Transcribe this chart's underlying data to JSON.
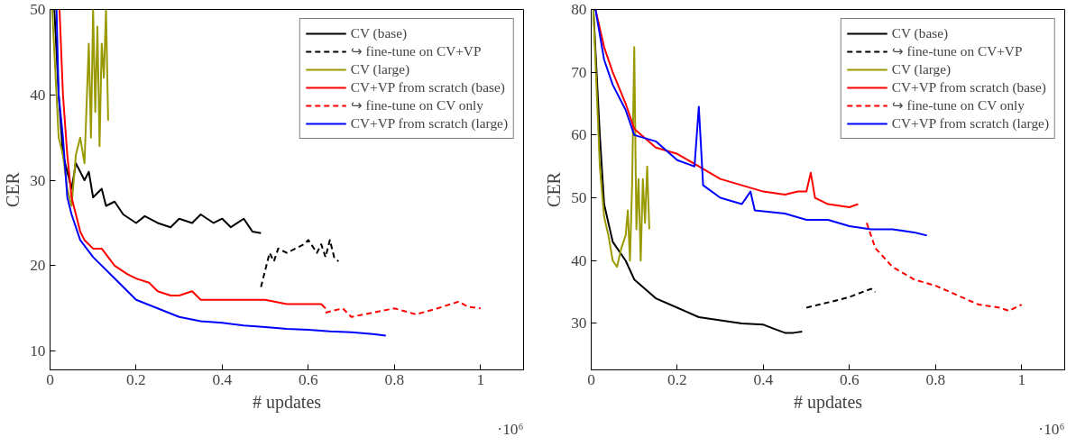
{
  "chart_data": [
    {
      "type": "line",
      "xlabel": "# updates",
      "ylabel": "CER",
      "annotations": [
        "·10⁶"
      ],
      "xlim": [
        0,
        1.1
      ],
      "ylim": [
        7.8,
        50
      ],
      "xticks": [
        0,
        0.2,
        0.4,
        0.6,
        0.8,
        1
      ],
      "yticks": [
        10,
        20,
        30,
        40,
        50
      ],
      "grid": false,
      "legend": "top right",
      "series": [
        {
          "name": "CV (base)",
          "color": "#000000",
          "line_style": "solid",
          "x": [
            0.01,
            0.02,
            0.03,
            0.04,
            0.05,
            0.06,
            0.08,
            0.09,
            0.1,
            0.12,
            0.13,
            0.15,
            0.17,
            0.2,
            0.22,
            0.25,
            0.28,
            0.3,
            0.33,
            0.35,
            0.38,
            0.4,
            0.42,
            0.45,
            0.47,
            0.49
          ],
          "values": [
            50,
            40,
            33,
            31,
            29,
            32,
            30,
            31,
            28,
            29,
            27,
            27.5,
            26,
            25,
            25.8,
            25,
            24.5,
            25.5,
            25,
            26,
            25,
            25.5,
            24.5,
            25.5,
            24,
            23.8
          ]
        },
        {
          "name": "↪ fine-tune on CV+VP",
          "color": "#000000",
          "line_style": "dashed",
          "x": [
            0.49,
            0.5,
            0.51,
            0.52,
            0.53,
            0.55,
            0.57,
            0.59,
            0.6,
            0.62,
            0.63,
            0.64,
            0.65,
            0.66,
            0.67
          ],
          "values": [
            17.5,
            19.5,
            21.5,
            20.5,
            22,
            21.5,
            22,
            22.5,
            23,
            21.5,
            22.5,
            21,
            23,
            21,
            20.5
          ]
        },
        {
          "name": "CV (large)",
          "color": "#999900",
          "line_style": "solid",
          "x": [
            0.005,
            0.015,
            0.02,
            0.03,
            0.04,
            0.05,
            0.06,
            0.07,
            0.08,
            0.09,
            0.095,
            0.1,
            0.105,
            0.11,
            0.115,
            0.12,
            0.125,
            0.13,
            0.135
          ],
          "values": [
            50,
            40,
            35,
            33,
            29,
            27,
            33,
            35,
            32,
            46,
            35,
            50,
            38,
            48,
            34,
            46,
            42,
            50,
            37
          ]
        },
        {
          "name": "CV+VP from scratch (base)",
          "color": "#ff0000",
          "line_style": "solid",
          "x": [
            0.022,
            0.03,
            0.04,
            0.05,
            0.06,
            0.07,
            0.08,
            0.1,
            0.12,
            0.15,
            0.18,
            0.2,
            0.23,
            0.25,
            0.28,
            0.3,
            0.33,
            0.35,
            0.4,
            0.45,
            0.5,
            0.55,
            0.6,
            0.63,
            0.64
          ],
          "values": [
            50,
            40,
            33,
            28,
            26,
            24,
            23,
            22,
            22,
            20,
            19,
            18.5,
            18,
            17,
            16.5,
            16.5,
            17,
            16,
            16,
            16,
            16,
            15.5,
            15.5,
            15.5,
            15
          ]
        },
        {
          "name": "↪ fine-tune on CV only",
          "color": "#ff0000",
          "line_style": "dashed",
          "x": [
            0.64,
            0.68,
            0.7,
            0.75,
            0.8,
            0.85,
            0.9,
            0.95,
            0.97,
            1.0
          ],
          "values": [
            14.5,
            15,
            14,
            14.5,
            15,
            14.3,
            15,
            15.8,
            15.2,
            15
          ]
        },
        {
          "name": "CV+VP from scratch (large)",
          "color": "#0000ff",
          "line_style": "solid",
          "x": [
            0.015,
            0.02,
            0.03,
            0.04,
            0.05,
            0.07,
            0.1,
            0.15,
            0.2,
            0.25,
            0.3,
            0.35,
            0.4,
            0.45,
            0.5,
            0.55,
            0.6,
            0.65,
            0.7,
            0.75,
            0.78
          ],
          "values": [
            50,
            40,
            35,
            28,
            26,
            23,
            21,
            18.5,
            16,
            15,
            14,
            13.5,
            13.3,
            13,
            12.8,
            12.6,
            12.5,
            12.3,
            12.2,
            12,
            11.8
          ]
        }
      ]
    },
    {
      "type": "line",
      "xlabel": "# updates",
      "ylabel": "CER",
      "annotations": [
        "·10⁶"
      ],
      "xlim": [
        0,
        1.1
      ],
      "ylim": [
        22.6,
        80
      ],
      "xticks": [
        0,
        0.2,
        0.4,
        0.6,
        0.8,
        1
      ],
      "yticks": [
        30,
        40,
        50,
        60,
        70,
        80
      ],
      "grid": false,
      "legend": "top right",
      "series": [
        {
          "name": "CV (base)",
          "color": "#000000",
          "line_style": "solid",
          "x": [
            0.005,
            0.02,
            0.03,
            0.05,
            0.08,
            0.1,
            0.15,
            0.2,
            0.25,
            0.3,
            0.35,
            0.4,
            0.43,
            0.45,
            0.47,
            0.49
          ],
          "values": [
            80,
            60,
            49,
            43,
            40,
            37,
            34,
            32.5,
            31,
            30.5,
            30,
            29.8,
            29,
            28.5,
            28.5,
            28.7
          ]
        },
        {
          "name": "↪ fine-tune on CV+VP",
          "color": "#000000",
          "line_style": "dashed",
          "x": [
            0.5,
            0.53,
            0.56,
            0.6,
            0.63,
            0.65,
            0.66
          ],
          "values": [
            32.5,
            33,
            33.5,
            34.2,
            35,
            35.5,
            35
          ]
        },
        {
          "name": "CV (large)",
          "color": "#999900",
          "line_style": "solid",
          "x": [
            0.005,
            0.02,
            0.03,
            0.04,
            0.05,
            0.06,
            0.07,
            0.08,
            0.085,
            0.09,
            0.095,
            0.1,
            0.105,
            0.11,
            0.115,
            0.12,
            0.125,
            0.13,
            0.135
          ],
          "values": [
            80,
            55,
            47,
            44,
            40,
            39,
            42,
            44,
            48,
            40,
            52,
            74,
            45,
            53,
            40,
            53,
            46,
            55,
            45
          ]
        },
        {
          "name": "CV+VP from scratch (base)",
          "color": "#ff0000",
          "line_style": "solid",
          "x": [
            0.01,
            0.03,
            0.05,
            0.08,
            0.1,
            0.15,
            0.2,
            0.25,
            0.3,
            0.35,
            0.4,
            0.45,
            0.48,
            0.5,
            0.51,
            0.52,
            0.55,
            0.6,
            0.62
          ],
          "values": [
            80,
            74,
            70,
            65,
            61,
            58,
            57,
            55,
            53,
            52,
            51,
            50.5,
            51,
            51,
            54,
            50,
            49,
            48.5,
            49
          ]
        },
        {
          "name": "↪ fine-tune on CV only",
          "color": "#ff0000",
          "line_style": "dashed",
          "x": [
            0.64,
            0.66,
            0.7,
            0.75,
            0.8,
            0.85,
            0.9,
            0.95,
            0.97,
            1.0
          ],
          "values": [
            46,
            42,
            39,
            37,
            36,
            34.5,
            33,
            32.5,
            32,
            33
          ]
        },
        {
          "name": "CV+VP from scratch (large)",
          "color": "#0000ff",
          "line_style": "solid",
          "x": [
            0.01,
            0.03,
            0.05,
            0.08,
            0.1,
            0.15,
            0.2,
            0.24,
            0.25,
            0.26,
            0.3,
            0.35,
            0.37,
            0.38,
            0.45,
            0.5,
            0.55,
            0.6,
            0.65,
            0.7,
            0.75,
            0.78
          ],
          "values": [
            80,
            72,
            68,
            64,
            60,
            59,
            56,
            55,
            64.5,
            52,
            50,
            49,
            51,
            48,
            47.5,
            46.5,
            46.5,
            45.5,
            45,
            45,
            44.5,
            44
          ]
        }
      ]
    }
  ]
}
